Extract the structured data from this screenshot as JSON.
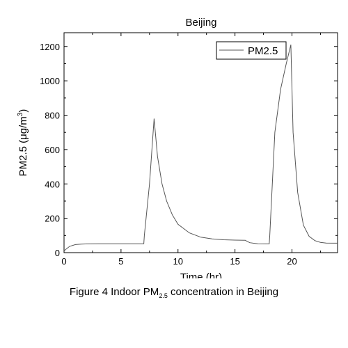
{
  "chart_data": {
    "type": "line",
    "title": "Beijing",
    "xlabel": "Time (hr)",
    "ylabel": "PM2.5 (μg/m",
    "ylabel_superscript": "3",
    "ylabel_close": ")",
    "xlim": [
      0,
      24
    ],
    "ylim": [
      0,
      1280
    ],
    "xticks": [
      0,
      5,
      10,
      15,
      20
    ],
    "yticks": [
      0,
      200,
      400,
      600,
      800,
      1000,
      1200
    ],
    "grid": false,
    "legend_position": "top-right",
    "series": [
      {
        "name": "PM2.5",
        "color": "#555555",
        "x": [
          0,
          0.2,
          0.5,
          1,
          1.5,
          2,
          3,
          4,
          5,
          6,
          7,
          7.05,
          7.5,
          7.9,
          8.2,
          8.6,
          9,
          9.5,
          10,
          11,
          12,
          13,
          14,
          15,
          15.9,
          16,
          16.3,
          17,
          18,
          18.05,
          18.5,
          19,
          19.5,
          19.9,
          20.1,
          20.5,
          21,
          21.5,
          22,
          22.5,
          23,
          24
        ],
        "y": [
          10,
          22,
          37,
          47,
          50,
          51,
          52,
          52,
          52,
          52,
          52,
          100,
          400,
          780,
          560,
          400,
          300,
          220,
          165,
          115,
          90,
          80,
          75,
          73,
          72,
          68,
          58,
          52,
          51,
          100,
          700,
          950,
          1100,
          1210,
          700,
          350,
          160,
          95,
          70,
          60,
          56,
          55
        ]
      }
    ]
  },
  "caption": {
    "prefix": "Figure 4 Indoor PM",
    "subscript": "2.5",
    "suffix": " concentration in Beijing"
  }
}
